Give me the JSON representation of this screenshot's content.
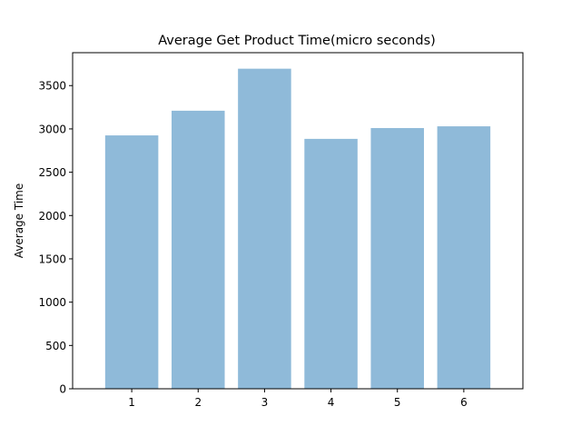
{
  "chart_data": {
    "type": "bar",
    "title": "Average Get Product Time(micro seconds)",
    "xlabel": "",
    "ylabel": "Average Time",
    "categories": [
      "1",
      "2",
      "3",
      "4",
      "5",
      "6"
    ],
    "values": [
      2925,
      3210,
      3695,
      2885,
      3010,
      3030
    ],
    "ylim": [
      0,
      3880
    ],
    "yticks": [
      "0",
      "500",
      "1000",
      "1500",
      "2000",
      "2500",
      "3000",
      "3500"
    ],
    "grid": false,
    "legend": "none",
    "bar_color": "#8fbad9"
  }
}
